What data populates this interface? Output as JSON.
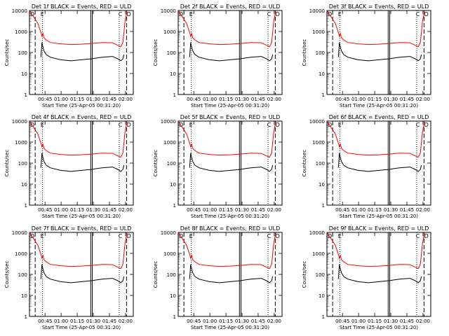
{
  "chart_data": [
    {
      "type": "line",
      "title": "Det 1f BLACK = Events, RED = ULD",
      "ylabel": "Counts/sec",
      "xlabel": "Start Time (25-Apr-05 00:31:20)",
      "yscale": "log",
      "ylim": [
        1,
        10000
      ],
      "ytick_labels": [
        "1",
        "10",
        "100",
        "1000",
        "10000"
      ],
      "xtick_labels": [
        "00:45",
        "01:00",
        "01:15",
        "01:30",
        "01:45",
        "02:00"
      ],
      "letters": [
        "D",
        "E",
        "C",
        "D"
      ],
      "series": [
        {
          "name": "ULD",
          "color": "#ff0000",
          "x": [
            0,
            8,
            11,
            12,
            13,
            14,
            16,
            20,
            30,
            40,
            50,
            60,
            70,
            80,
            85,
            88,
            90,
            92,
            94
          ],
          "y": [
            10000,
            2500,
            900,
            600,
            800,
            500,
            400,
            300,
            260,
            240,
            250,
            270,
            300,
            290,
            220,
            190,
            300,
            3000,
            10000
          ]
        },
        {
          "name": "Events",
          "color": "#000000",
          "x": [
            11,
            12,
            13,
            14,
            16,
            20,
            30,
            40,
            50,
            60,
            65,
            70,
            80,
            85,
            88,
            90,
            91
          ],
          "y": [
            60,
            300,
            180,
            120,
            80,
            60,
            45,
            40,
            45,
            50,
            55,
            60,
            65,
            50,
            40,
            50,
            80
          ]
        }
      ]
    },
    {
      "type": "line",
      "title": "Det 2f BLACK = Events, RED = ULD",
      "ylabel": "Counts/sec",
      "xlabel": "Start Time (25-Apr-05 00:31:20)",
      "yscale": "log",
      "ylim": [
        1,
        10000
      ],
      "ytick_labels": [
        "1",
        "10",
        "100",
        "1000",
        "10000"
      ],
      "xtick_labels": [
        "00:45",
        "01:00",
        "01:15",
        "01:30",
        "01:45",
        "02:00"
      ],
      "letters": [
        "D",
        "E",
        "C",
        "D"
      ],
      "series": [
        {
          "name": "ULD",
          "color": "#ff0000",
          "x": [
            0,
            8,
            11,
            12,
            13,
            14,
            16,
            20,
            30,
            40,
            50,
            60,
            70,
            80,
            85,
            88,
            90,
            92,
            94
          ],
          "y": [
            10000,
            2500,
            900,
            600,
            800,
            500,
            400,
            300,
            260,
            240,
            250,
            270,
            300,
            290,
            220,
            190,
            300,
            3000,
            10000
          ]
        },
        {
          "name": "Events",
          "color": "#000000",
          "x": [
            11,
            12,
            13,
            14,
            16,
            20,
            30,
            40,
            50,
            60,
            65,
            70,
            80,
            85,
            88,
            90,
            91
          ],
          "y": [
            60,
            300,
            180,
            120,
            80,
            60,
            45,
            40,
            45,
            50,
            55,
            60,
            65,
            50,
            40,
            50,
            80
          ]
        }
      ]
    },
    {
      "type": "line",
      "title": "Det 3f BLACK = Events, RED = ULD",
      "ylabel": "Counts/sec",
      "xlabel": "Start Time (25-Apr-05 00:31:20)",
      "yscale": "log",
      "ylim": [
        1,
        10000
      ],
      "ytick_labels": [
        "1",
        "10",
        "100",
        "1000",
        "10000"
      ],
      "xtick_labels": [
        "00:45",
        "01:00",
        "01:15",
        "01:30",
        "01:45",
        "02:00"
      ],
      "letters": [
        "D",
        "E",
        "C",
        "D"
      ],
      "series": [
        {
          "name": "ULD",
          "color": "#ff0000",
          "x": [
            0,
            8,
            11,
            12,
            13,
            14,
            16,
            20,
            30,
            40,
            50,
            60,
            70,
            80,
            85,
            88,
            90,
            92,
            94
          ],
          "y": [
            10000,
            2500,
            900,
            600,
            800,
            500,
            400,
            300,
            260,
            240,
            250,
            270,
            300,
            290,
            220,
            190,
            300,
            3000,
            10000
          ]
        },
        {
          "name": "Events",
          "color": "#000000",
          "x": [
            11,
            12,
            13,
            14,
            16,
            20,
            30,
            40,
            50,
            60,
            65,
            70,
            80,
            85,
            88,
            90,
            91
          ],
          "y": [
            60,
            300,
            180,
            120,
            80,
            60,
            45,
            40,
            45,
            50,
            55,
            60,
            65,
            50,
            40,
            50,
            80
          ]
        }
      ]
    },
    {
      "type": "line",
      "title": "Det 4f BLACK = Events, RED = ULD",
      "ylabel": "Counts/sec",
      "xlabel": "Start Time (25-Apr-05 00:31:20)",
      "yscale": "log",
      "ylim": [
        1,
        10000
      ],
      "ytick_labels": [
        "1",
        "10",
        "100",
        "1000",
        "10000"
      ],
      "xtick_labels": [
        "00:45",
        "01:00",
        "01:15",
        "01:30",
        "01:45",
        "02:00"
      ],
      "letters": [
        "D",
        "E",
        "C",
        "D"
      ],
      "series": [
        {
          "name": "ULD",
          "color": "#ff0000",
          "x": [
            0,
            8,
            11,
            12,
            13,
            14,
            16,
            20,
            30,
            40,
            50,
            60,
            70,
            80,
            85,
            88,
            90,
            92,
            94
          ],
          "y": [
            10000,
            2500,
            900,
            600,
            800,
            500,
            400,
            300,
            260,
            240,
            250,
            270,
            300,
            290,
            220,
            190,
            300,
            3000,
            10000
          ]
        },
        {
          "name": "Events",
          "color": "#000000",
          "x": [
            11,
            12,
            13,
            14,
            16,
            20,
            30,
            40,
            50,
            60,
            65,
            70,
            80,
            85,
            88,
            90,
            91
          ],
          "y": [
            60,
            300,
            180,
            120,
            80,
            60,
            45,
            40,
            45,
            50,
            55,
            60,
            65,
            50,
            40,
            50,
            80
          ]
        }
      ]
    },
    {
      "type": "line",
      "title": "Det 5f BLACK = Events, RED = ULD",
      "ylabel": "Counts/sec",
      "xlabel": "Start Time (25-Apr-05 00:31:20)",
      "yscale": "log",
      "ylim": [
        1,
        10000
      ],
      "ytick_labels": [
        "1",
        "10",
        "100",
        "1000",
        "10000"
      ],
      "xtick_labels": [
        "00:45",
        "01:00",
        "01:15",
        "01:30",
        "01:45",
        "02:00"
      ],
      "letters": [
        "D",
        "E",
        "C",
        "D"
      ],
      "series": [
        {
          "name": "ULD",
          "color": "#ff0000",
          "x": [
            0,
            8,
            11,
            12,
            13,
            14,
            16,
            20,
            30,
            40,
            50,
            60,
            70,
            80,
            85,
            88,
            90,
            92,
            94
          ],
          "y": [
            10000,
            2500,
            900,
            600,
            800,
            500,
            400,
            300,
            260,
            240,
            250,
            270,
            300,
            290,
            220,
            190,
            300,
            3000,
            10000
          ]
        },
        {
          "name": "Events",
          "color": "#000000",
          "x": [
            11,
            12,
            13,
            14,
            16,
            20,
            30,
            40,
            50,
            60,
            65,
            70,
            80,
            85,
            88,
            90,
            91
          ],
          "y": [
            60,
            300,
            180,
            120,
            80,
            60,
            45,
            40,
            45,
            50,
            55,
            60,
            65,
            50,
            40,
            50,
            80
          ]
        }
      ]
    },
    {
      "type": "line",
      "title": "Det 6f BLACK = Events, RED = ULD",
      "ylabel": "Counts/sec",
      "xlabel": "Start Time (25-Apr-05 00:31:20)",
      "yscale": "log",
      "ylim": [
        1,
        10000
      ],
      "ytick_labels": [
        "1",
        "10",
        "100",
        "1000",
        "10000"
      ],
      "xtick_labels": [
        "00:45",
        "01:00",
        "01:15",
        "01:30",
        "01:45",
        "02:00"
      ],
      "letters": [
        "D",
        "E",
        "C",
        "D"
      ],
      "series": [
        {
          "name": "ULD",
          "color": "#ff0000",
          "x": [
            0,
            8,
            11,
            12,
            13,
            14,
            16,
            20,
            30,
            40,
            50,
            60,
            70,
            80,
            85,
            88,
            90,
            92,
            94
          ],
          "y": [
            10000,
            2500,
            900,
            600,
            800,
            500,
            400,
            300,
            260,
            240,
            250,
            270,
            300,
            290,
            220,
            190,
            300,
            3000,
            10000
          ]
        },
        {
          "name": "Events",
          "color": "#000000",
          "x": [
            11,
            12,
            13,
            14,
            16,
            20,
            30,
            40,
            50,
            60,
            65,
            70,
            80,
            85,
            88,
            90,
            91
          ],
          "y": [
            60,
            300,
            180,
            120,
            80,
            60,
            45,
            40,
            45,
            50,
            55,
            60,
            65,
            50,
            40,
            50,
            80
          ]
        }
      ]
    },
    {
      "type": "line",
      "title": "Det 7f BLACK = Events, RED = ULD",
      "ylabel": "Counts/sec",
      "xlabel": "Start Time (25-Apr-05 00:31:20)",
      "yscale": "log",
      "ylim": [
        1,
        10000
      ],
      "ytick_labels": [
        "1",
        "10",
        "100",
        "1000",
        "10000"
      ],
      "xtick_labels": [
        "00:45",
        "01:00",
        "01:15",
        "01:30",
        "01:45",
        "02:00"
      ],
      "letters": [
        "D",
        "E",
        "C",
        "D"
      ],
      "series": [
        {
          "name": "ULD",
          "color": "#ff0000",
          "x": [
            0,
            8,
            11,
            12,
            13,
            14,
            16,
            20,
            30,
            40,
            50,
            60,
            70,
            80,
            85,
            88,
            90,
            92,
            94
          ],
          "y": [
            10000,
            2500,
            900,
            600,
            800,
            500,
            400,
            300,
            260,
            240,
            250,
            270,
            300,
            290,
            220,
            190,
            300,
            3000,
            10000
          ]
        },
        {
          "name": "Events",
          "color": "#000000",
          "x": [
            11,
            12,
            13,
            14,
            16,
            20,
            30,
            40,
            50,
            60,
            65,
            70,
            80,
            85,
            88,
            90,
            91
          ],
          "y": [
            60,
            300,
            180,
            120,
            80,
            60,
            45,
            40,
            45,
            50,
            55,
            60,
            65,
            50,
            40,
            50,
            80
          ]
        }
      ]
    },
    {
      "type": "line",
      "title": "Det 8f BLACK = Events, RED = ULD",
      "ylabel": "Counts/sec",
      "xlabel": "Start Time (25-Apr-05 00:31:20)",
      "yscale": "log",
      "ylim": [
        1,
        10000
      ],
      "ytick_labels": [
        "1",
        "10",
        "100",
        "1000",
        "10000"
      ],
      "xtick_labels": [
        "00:45",
        "01:00",
        "01:15",
        "01:30",
        "01:45",
        "02:00"
      ],
      "letters": [
        "D",
        "E",
        "C",
        "D"
      ],
      "series": [
        {
          "name": "ULD",
          "color": "#ff0000",
          "x": [
            0,
            8,
            11,
            12,
            13,
            14,
            16,
            20,
            30,
            40,
            50,
            60,
            70,
            80,
            85,
            88,
            90,
            92,
            94
          ],
          "y": [
            10000,
            2500,
            900,
            600,
            800,
            500,
            400,
            300,
            260,
            240,
            250,
            270,
            300,
            290,
            220,
            190,
            300,
            3000,
            10000
          ]
        },
        {
          "name": "Events",
          "color": "#000000",
          "x": [
            11,
            12,
            13,
            14,
            16,
            20,
            30,
            40,
            50,
            60,
            65,
            70,
            80,
            85,
            88,
            90,
            91
          ],
          "y": [
            60,
            300,
            180,
            120,
            80,
            60,
            45,
            40,
            45,
            50,
            55,
            60,
            65,
            50,
            40,
            50,
            80
          ]
        }
      ]
    },
    {
      "type": "line",
      "title": "Det 9f BLACK = Events, RED = ULD",
      "ylabel": "Counts/sec",
      "xlabel": "Start Time (25-Apr-05 00:31:20)",
      "yscale": "log",
      "ylim": [
        1,
        10000
      ],
      "ytick_labels": [
        "1",
        "10",
        "100",
        "1000",
        "10000"
      ],
      "xtick_labels": [
        "00:45",
        "01:00",
        "01:15",
        "01:30",
        "01:45",
        "02:00"
      ],
      "letters": [
        "D",
        "E",
        "C",
        "D"
      ],
      "series": [
        {
          "name": "ULD",
          "color": "#ff0000",
          "x": [
            0,
            8,
            11,
            12,
            13,
            14,
            16,
            20,
            30,
            40,
            50,
            60,
            70,
            80,
            85,
            88,
            90,
            92,
            94
          ],
          "y": [
            10000,
            2500,
            900,
            600,
            800,
            500,
            400,
            300,
            260,
            240,
            250,
            270,
            300,
            290,
            220,
            190,
            300,
            3000,
            10000
          ]
        },
        {
          "name": "Events",
          "color": "#000000",
          "x": [
            11,
            12,
            13,
            14,
            16,
            20,
            30,
            40,
            50,
            60,
            65,
            70,
            80,
            85,
            88,
            90,
            91
          ],
          "y": [
            60,
            300,
            180,
            120,
            80,
            60,
            45,
            40,
            45,
            50,
            55,
            60,
            65,
            50,
            40,
            50,
            80
          ]
        }
      ]
    }
  ]
}
